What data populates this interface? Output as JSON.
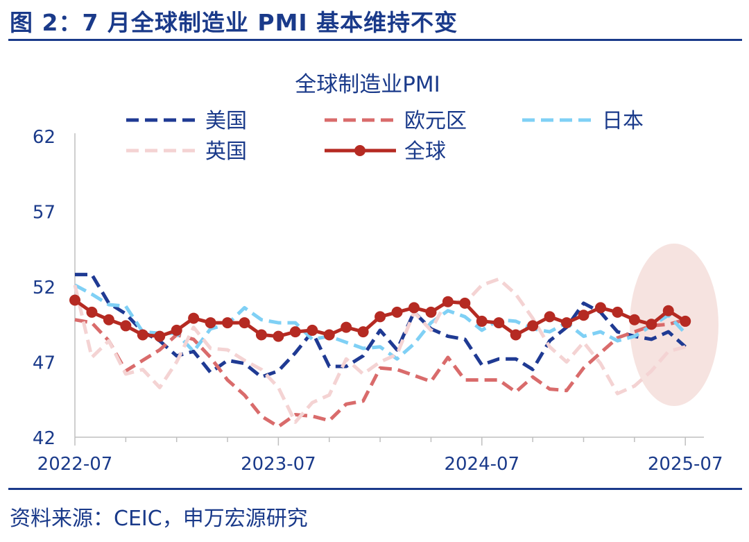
{
  "figure_title": "图 2：7 月全球制造业 PMI 基本维持不变",
  "source_note": "资料来源：CEIC，申万宏源研究",
  "colors": {
    "text": "#1a3a8a",
    "rule": "#1a3a8a",
    "highlight": "#f3d9d6"
  },
  "chart_data": {
    "type": "line",
    "title": "全球制造业PMI",
    "xlabel": "",
    "ylabel": "",
    "ylim": [
      42,
      62
    ],
    "yticks": [
      42,
      47,
      52,
      57,
      62
    ],
    "xtick_labels": [
      "2022-07",
      "2023-07",
      "2024-07",
      "2025-07"
    ],
    "grid": false,
    "legend_position": "top",
    "x": [
      "2022-07",
      "2022-08",
      "2022-09",
      "2022-10",
      "2022-11",
      "2022-12",
      "2023-01",
      "2023-02",
      "2023-03",
      "2023-04",
      "2023-05",
      "2023-06",
      "2023-07",
      "2023-08",
      "2023-09",
      "2023-10",
      "2023-11",
      "2023-12",
      "2024-01",
      "2024-02",
      "2024-03",
      "2024-04",
      "2024-05",
      "2024-06",
      "2024-07",
      "2024-08",
      "2024-09",
      "2024-10",
      "2024-11",
      "2024-12",
      "2025-01",
      "2025-02",
      "2025-03",
      "2025-04",
      "2025-05",
      "2025-06",
      "2025-07"
    ],
    "series": [
      {
        "name": "美国",
        "color": "#1f3a93",
        "dash": "long",
        "width": 5,
        "values": [
          52.8,
          52.8,
          50.9,
          50.2,
          49.0,
          48.4,
          47.4,
          47.7,
          46.3,
          47.1,
          46.9,
          46.0,
          46.4,
          47.6,
          49.0,
          46.7,
          46.7,
          47.4,
          49.1,
          47.8,
          50.3,
          49.2,
          48.7,
          48.5,
          46.8,
          47.2,
          47.2,
          46.5,
          48.4,
          49.3,
          50.9,
          50.3,
          49.0,
          48.7,
          48.5,
          49.0,
          48.0
        ]
      },
      {
        "name": "欧元区",
        "color": "#d96b6b",
        "dash": "long",
        "width": 5,
        "values": [
          49.8,
          49.6,
          48.4,
          46.4,
          47.1,
          47.8,
          48.8,
          48.5,
          47.3,
          45.8,
          44.8,
          43.4,
          42.7,
          43.5,
          43.4,
          43.1,
          44.2,
          44.4,
          46.6,
          46.5,
          46.1,
          45.7,
          47.3,
          45.8,
          45.8,
          45.8,
          45.0,
          46.0,
          45.2,
          45.1,
          46.6,
          47.6,
          48.6,
          49.0,
          49.4,
          49.5,
          49.8
        ]
      },
      {
        "name": "日本",
        "color": "#7fd0f5",
        "dash": "long",
        "width": 5,
        "values": [
          52.1,
          51.5,
          50.8,
          50.7,
          49.0,
          48.9,
          48.9,
          47.7,
          49.2,
          49.5,
          50.6,
          49.8,
          49.6,
          49.6,
          48.5,
          48.7,
          48.3,
          47.9,
          48.0,
          47.2,
          48.2,
          49.6,
          50.4,
          50.0,
          49.1,
          49.8,
          49.7,
          49.2,
          49.0,
          49.6,
          48.7,
          49.0,
          48.4,
          48.7,
          49.4,
          50.1,
          48.9
        ]
      },
      {
        "name": "英国",
        "color": "#f4d3d3",
        "dash": "long",
        "width": 5,
        "values": [
          52.1,
          47.3,
          48.4,
          46.2,
          46.5,
          45.3,
          47.0,
          49.3,
          47.9,
          47.8,
          47.1,
          46.5,
          45.3,
          43.0,
          44.3,
          44.8,
          47.2,
          46.2,
          47.0,
          47.5,
          50.3,
          49.1,
          51.2,
          50.9,
          52.1,
          52.5,
          51.5,
          49.9,
          48.0,
          47.0,
          48.3,
          46.9,
          44.9,
          45.4,
          46.4,
          47.7,
          48.0
        ]
      },
      {
        "name": "全球",
        "color": "#b52a22",
        "dash": "solid",
        "width": 5,
        "markers": true,
        "values": [
          51.1,
          50.3,
          49.8,
          49.4,
          48.8,
          48.7,
          49.1,
          49.9,
          49.6,
          49.6,
          49.6,
          48.8,
          48.7,
          49.0,
          49.1,
          48.8,
          49.3,
          49.0,
          50.0,
          50.3,
          50.6,
          50.3,
          51.0,
          50.9,
          49.7,
          49.6,
          48.8,
          49.4,
          50.0,
          49.6,
          50.1,
          50.6,
          50.3,
          49.8,
          49.5,
          50.4,
          49.7
        ]
      }
    ],
    "annotation": "ellipse highlighting 2025-03 to 2025-07"
  }
}
